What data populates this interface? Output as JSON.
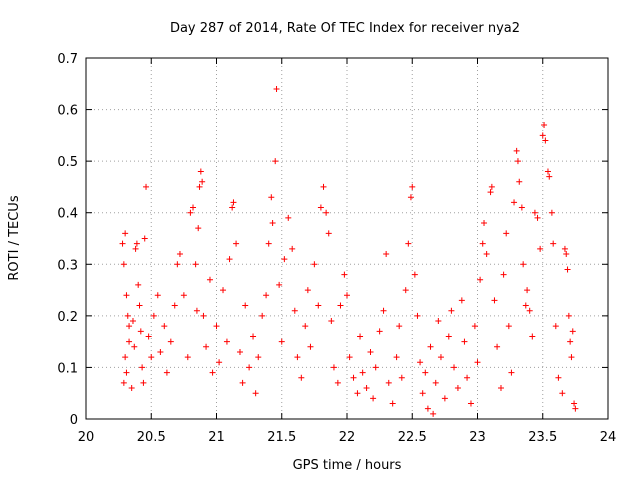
{
  "chart_data": {
    "type": "scatter",
    "title": "Day 287 of 2014, Rate Of TEC Index for receiver nya2",
    "xlabel": "GPS time / hours",
    "ylabel": "ROTI / TECUs",
    "xlim": [
      20,
      24
    ],
    "ylim": [
      0,
      0.7
    ],
    "xticks": [
      "20",
      "20.5",
      "21",
      "21.5",
      "22",
      "22.5",
      "23",
      "23.5",
      "24"
    ],
    "yticks": [
      "0",
      "0.1",
      "0.2",
      "0.3",
      "0.4",
      "0.5",
      "0.6",
      "0.7"
    ],
    "grid": true,
    "marker": "+",
    "color": "#ff0000",
    "series": [
      {
        "points": [
          [
            20.28,
            0.34
          ],
          [
            20.29,
            0.3
          ],
          [
            20.3,
            0.36
          ],
          [
            20.31,
            0.24
          ],
          [
            20.32,
            0.2
          ],
          [
            20.33,
            0.18
          ],
          [
            20.3,
            0.12
          ],
          [
            20.31,
            0.09
          ],
          [
            20.29,
            0.07
          ],
          [
            20.33,
            0.15
          ],
          [
            20.35,
            0.06
          ],
          [
            20.36,
            0.19
          ],
          [
            20.37,
            0.14
          ],
          [
            20.38,
            0.33
          ],
          [
            20.39,
            0.34
          ],
          [
            20.4,
            0.26
          ],
          [
            20.41,
            0.22
          ],
          [
            20.42,
            0.17
          ],
          [
            20.43,
            0.1
          ],
          [
            20.44,
            0.07
          ],
          [
            20.45,
            0.35
          ],
          [
            20.46,
            0.45
          ],
          [
            20.48,
            0.16
          ],
          [
            20.5,
            0.12
          ],
          [
            20.52,
            0.2
          ],
          [
            20.55,
            0.24
          ],
          [
            20.57,
            0.13
          ],
          [
            20.6,
            0.18
          ],
          [
            20.62,
            0.09
          ],
          [
            20.65,
            0.15
          ],
          [
            20.68,
            0.22
          ],
          [
            20.7,
            0.3
          ],
          [
            20.72,
            0.32
          ],
          [
            20.75,
            0.24
          ],
          [
            20.78,
            0.12
          ],
          [
            20.8,
            0.4
          ],
          [
            20.82,
            0.41
          ],
          [
            20.84,
            0.3
          ],
          [
            20.85,
            0.21
          ],
          [
            20.86,
            0.37
          ],
          [
            20.87,
            0.45
          ],
          [
            20.88,
            0.48
          ],
          [
            20.89,
            0.46
          ],
          [
            20.9,
            0.2
          ],
          [
            20.92,
            0.14
          ],
          [
            20.95,
            0.27
          ],
          [
            20.97,
            0.09
          ],
          [
            21.0,
            0.18
          ],
          [
            21.02,
            0.11
          ],
          [
            21.05,
            0.25
          ],
          [
            21.08,
            0.15
          ],
          [
            21.1,
            0.31
          ],
          [
            21.12,
            0.41
          ],
          [
            21.13,
            0.42
          ],
          [
            21.15,
            0.34
          ],
          [
            21.18,
            0.13
          ],
          [
            21.2,
            0.07
          ],
          [
            21.22,
            0.22
          ],
          [
            21.25,
            0.1
          ],
          [
            21.28,
            0.16
          ],
          [
            21.3,
            0.05
          ],
          [
            21.32,
            0.12
          ],
          [
            21.35,
            0.2
          ],
          [
            21.38,
            0.24
          ],
          [
            21.4,
            0.34
          ],
          [
            21.42,
            0.43
          ],
          [
            21.43,
            0.38
          ],
          [
            21.45,
            0.5
          ],
          [
            21.46,
            0.64
          ],
          [
            21.48,
            0.26
          ],
          [
            21.5,
            0.15
          ],
          [
            21.52,
            0.31
          ],
          [
            21.55,
            0.39
          ],
          [
            21.58,
            0.33
          ],
          [
            21.6,
            0.21
          ],
          [
            21.62,
            0.12
          ],
          [
            21.65,
            0.08
          ],
          [
            21.68,
            0.18
          ],
          [
            21.7,
            0.25
          ],
          [
            21.72,
            0.14
          ],
          [
            21.75,
            0.3
          ],
          [
            21.78,
            0.22
          ],
          [
            21.8,
            0.41
          ],
          [
            21.82,
            0.45
          ],
          [
            21.84,
            0.4
          ],
          [
            21.86,
            0.36
          ],
          [
            21.88,
            0.19
          ],
          [
            21.9,
            0.1
          ],
          [
            21.93,
            0.07
          ],
          [
            21.95,
            0.22
          ],
          [
            21.98,
            0.28
          ],
          [
            22.0,
            0.24
          ],
          [
            22.02,
            0.12
          ],
          [
            22.05,
            0.08
          ],
          [
            22.08,
            0.05
          ],
          [
            22.1,
            0.16
          ],
          [
            22.12,
            0.09
          ],
          [
            22.15,
            0.06
          ],
          [
            22.18,
            0.13
          ],
          [
            22.2,
            0.04
          ],
          [
            22.22,
            0.1
          ],
          [
            22.25,
            0.17
          ],
          [
            22.28,
            0.21
          ],
          [
            22.3,
            0.32
          ],
          [
            22.32,
            0.07
          ],
          [
            22.35,
            0.03
          ],
          [
            22.38,
            0.12
          ],
          [
            22.4,
            0.18
          ],
          [
            22.42,
            0.08
          ],
          [
            22.45,
            0.25
          ],
          [
            22.47,
            0.34
          ],
          [
            22.49,
            0.43
          ],
          [
            22.5,
            0.45
          ],
          [
            22.52,
            0.28
          ],
          [
            22.54,
            0.2
          ],
          [
            22.56,
            0.11
          ],
          [
            22.58,
            0.05
          ],
          [
            22.6,
            0.09
          ],
          [
            22.62,
            0.02
          ],
          [
            22.64,
            0.14
          ],
          [
            22.66,
            0.01
          ],
          [
            22.68,
            0.07
          ],
          [
            22.7,
            0.19
          ],
          [
            22.72,
            0.12
          ],
          [
            22.75,
            0.04
          ],
          [
            22.78,
            0.16
          ],
          [
            22.8,
            0.21
          ],
          [
            22.82,
            0.1
          ],
          [
            22.85,
            0.06
          ],
          [
            22.88,
            0.23
          ],
          [
            22.9,
            0.15
          ],
          [
            22.92,
            0.08
          ],
          [
            22.95,
            0.03
          ],
          [
            22.98,
            0.18
          ],
          [
            23.0,
            0.11
          ],
          [
            23.02,
            0.27
          ],
          [
            23.04,
            0.34
          ],
          [
            23.05,
            0.38
          ],
          [
            23.07,
            0.32
          ],
          [
            23.1,
            0.44
          ],
          [
            23.11,
            0.45
          ],
          [
            23.13,
            0.23
          ],
          [
            23.15,
            0.14
          ],
          [
            23.18,
            0.06
          ],
          [
            23.2,
            0.28
          ],
          [
            23.22,
            0.36
          ],
          [
            23.24,
            0.18
          ],
          [
            23.26,
            0.09
          ],
          [
            23.28,
            0.42
          ],
          [
            23.3,
            0.52
          ],
          [
            23.31,
            0.5
          ],
          [
            23.32,
            0.46
          ],
          [
            23.34,
            0.41
          ],
          [
            23.35,
            0.3
          ],
          [
            23.37,
            0.22
          ],
          [
            23.38,
            0.25
          ],
          [
            23.4,
            0.21
          ],
          [
            23.42,
            0.16
          ],
          [
            23.44,
            0.4
          ],
          [
            23.46,
            0.39
          ],
          [
            23.48,
            0.33
          ],
          [
            23.5,
            0.55
          ],
          [
            23.51,
            0.57
          ],
          [
            23.52,
            0.54
          ],
          [
            23.54,
            0.48
          ],
          [
            23.55,
            0.47
          ],
          [
            23.57,
            0.4
          ],
          [
            23.58,
            0.34
          ],
          [
            23.6,
            0.18
          ],
          [
            23.62,
            0.08
          ],
          [
            23.65,
            0.05
          ],
          [
            23.67,
            0.33
          ],
          [
            23.68,
            0.32
          ],
          [
            23.69,
            0.29
          ],
          [
            23.7,
            0.2
          ],
          [
            23.71,
            0.15
          ],
          [
            23.72,
            0.12
          ],
          [
            23.73,
            0.17
          ],
          [
            23.74,
            0.03
          ],
          [
            23.75,
            0.02
          ]
        ]
      }
    ]
  }
}
